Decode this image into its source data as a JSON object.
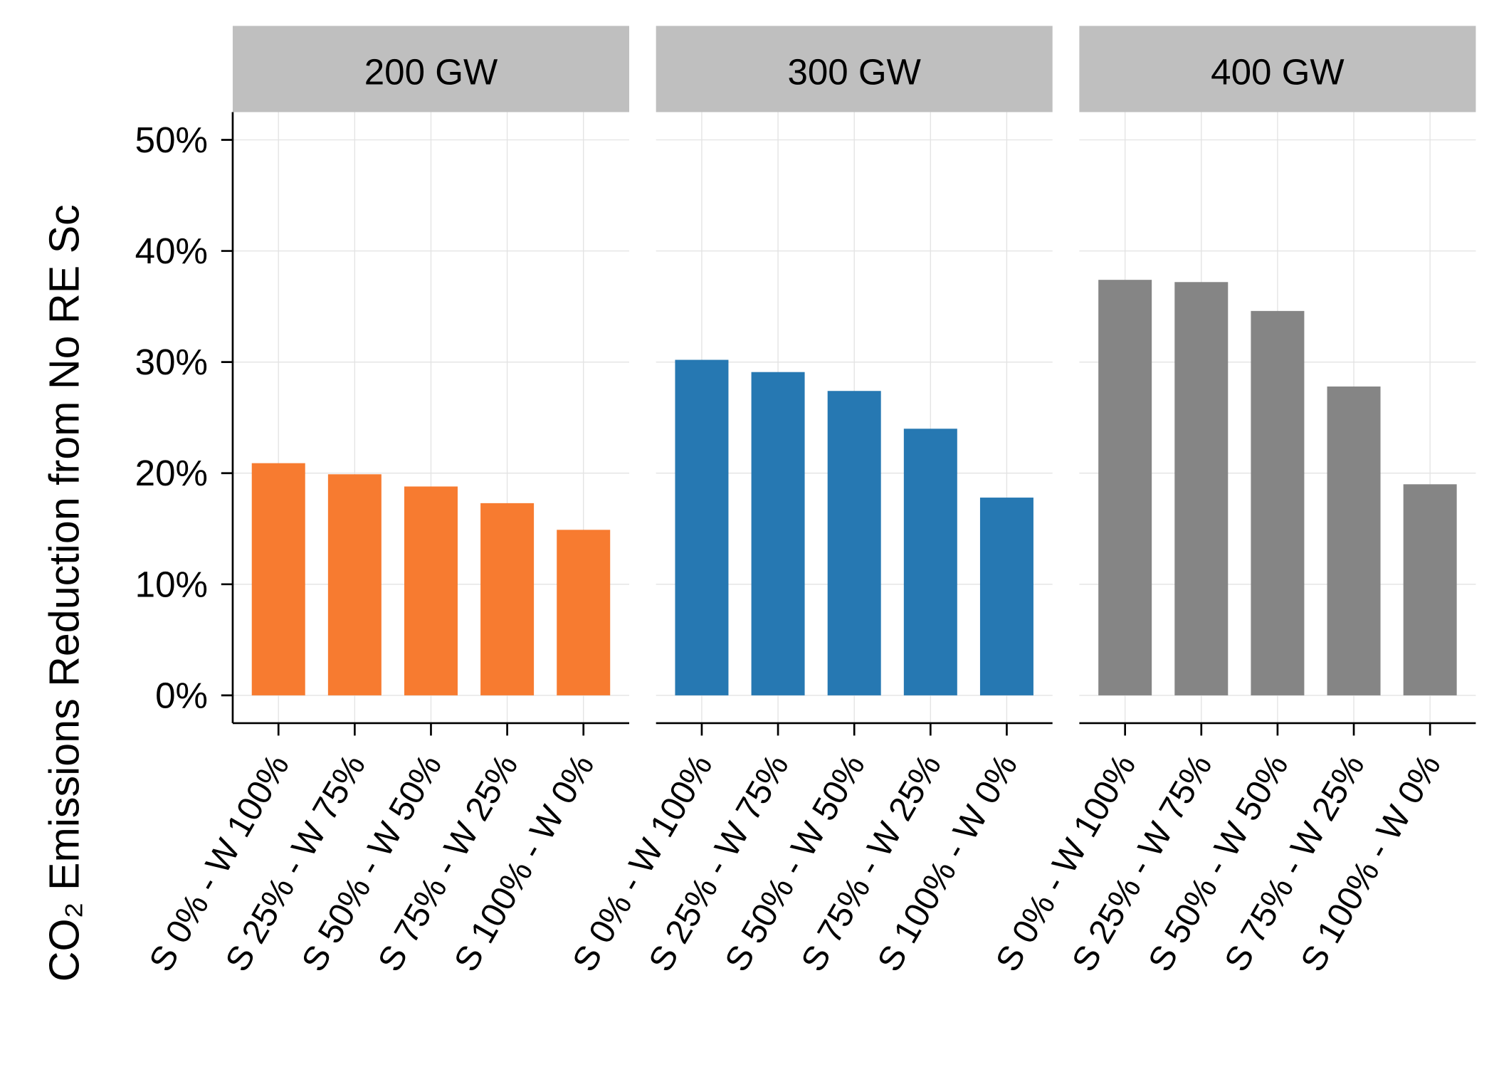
{
  "y_label": "CO₂ Emissions Reduction from No RE Sc",
  "chart_data": [
    {
      "type": "bar",
      "title": "200 GW",
      "categories": [
        "S 0% - W 100%",
        "S 25% - W 75%",
        "S 50% - W 50%",
        "S 75% - W 25%",
        "S 100% - W 0%"
      ],
      "values": [
        20.9,
        19.9,
        18.8,
        17.3,
        14.9
      ],
      "color": "#f77b30",
      "ylim": [
        -2.5,
        52.5
      ],
      "yticks": [
        {
          "value": 0,
          "label": "0%"
        },
        {
          "value": 10,
          "label": "10%"
        },
        {
          "value": 20,
          "label": "20%"
        },
        {
          "value": 30,
          "label": "30%"
        },
        {
          "value": 40,
          "label": "40%"
        },
        {
          "value": 50,
          "label": "50%"
        }
      ],
      "grid": true
    },
    {
      "type": "bar",
      "title": "300 GW",
      "categories": [
        "S 0% - W 100%",
        "S 25% - W 75%",
        "S 50% - W 50%",
        "S 75% - W 25%",
        "S 100% - W 0%"
      ],
      "values": [
        30.2,
        29.1,
        27.4,
        24.0,
        17.8
      ],
      "color": "#2678b2",
      "ylim": [
        -2.5,
        52.5
      ],
      "yticks": [
        {
          "value": 0,
          "label": "0%"
        },
        {
          "value": 10,
          "label": "10%"
        },
        {
          "value": 20,
          "label": "20%"
        },
        {
          "value": 30,
          "label": "30%"
        },
        {
          "value": 40,
          "label": "40%"
        },
        {
          "value": 50,
          "label": "50%"
        }
      ],
      "grid": true
    },
    {
      "type": "bar",
      "title": "400 GW",
      "categories": [
        "S 0% - W 100%",
        "S 25% - W 75%",
        "S 50% - W 50%",
        "S 75% - W 25%",
        "S 100% - W 0%"
      ],
      "values": [
        37.4,
        37.2,
        34.6,
        27.8,
        19.0
      ],
      "color": "#858585",
      "ylim": [
        -2.5,
        52.5
      ],
      "yticks": [
        {
          "value": 0,
          "label": "0%"
        },
        {
          "value": 10,
          "label": "10%"
        },
        {
          "value": 20,
          "label": "20%"
        },
        {
          "value": 30,
          "label": "30%"
        },
        {
          "value": 40,
          "label": "40%"
        },
        {
          "value": 50,
          "label": "50%"
        }
      ],
      "grid": true
    }
  ]
}
